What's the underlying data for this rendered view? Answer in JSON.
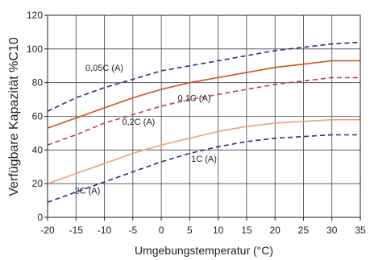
{
  "chart_data": {
    "type": "line",
    "title": "",
    "xlabel": "Umgebungstemperatur (°C)",
    "ylabel": "Verfügbare Kapazität %C10",
    "xlim": [
      -20,
      35
    ],
    "ylim": [
      0,
      120
    ],
    "x_ticks": [
      -20,
      -15,
      -10,
      -5,
      0,
      5,
      10,
      15,
      20,
      25,
      30,
      35
    ],
    "y_ticks": [
      0,
      20,
      40,
      60,
      80,
      100,
      120
    ],
    "grid": true,
    "series": [
      {
        "name": "0,05C (A)",
        "color": "#2a2f7a",
        "dash": true,
        "x": [
          -20,
          -15,
          -10,
          -5,
          0,
          5,
          10,
          15,
          20,
          25,
          30,
          35
        ],
        "y": [
          63,
          71,
          77,
          82,
          87,
          90,
          93,
          96,
          99,
          101,
          103,
          104
        ]
      },
      {
        "name": "",
        "color": "#d0501c",
        "dash": false,
        "x": [
          -20,
          -15,
          -10,
          -5,
          0,
          5,
          10,
          15,
          20,
          25,
          30,
          35
        ],
        "y": [
          53,
          59,
          65,
          71,
          76,
          80,
          83,
          86,
          89,
          91,
          93,
          93
        ]
      },
      {
        "name": "0,1C (A)",
        "color": "#b03a8a",
        "dash": true,
        "x": [
          -20,
          -15,
          -10,
          -5,
          0,
          5,
          10,
          15,
          20,
          25,
          30,
          35
        ],
        "y": [
          43,
          49,
          56,
          61,
          66,
          70,
          73,
          76,
          79,
          81,
          83,
          83
        ]
      },
      {
        "name": "0,2C (A)",
        "color": "#f0a07a",
        "dash": false,
        "x": [
          -20,
          -15,
          -10,
          -5,
          0,
          5,
          10,
          15,
          20,
          25,
          30,
          35
        ],
        "y": [
          20,
          26,
          32,
          38,
          43,
          47,
          51,
          54,
          56,
          57,
          58,
          58
        ]
      },
      {
        "name": "1C (A)",
        "color": "#2a2f7a",
        "dash": true,
        "x": [
          -20,
          -15,
          -10,
          -5,
          0,
          5,
          10,
          15,
          20,
          25,
          30,
          35
        ],
        "y": [
          9,
          15,
          21,
          27,
          33,
          38,
          42,
          45,
          47,
          48,
          49,
          49
        ]
      }
    ],
    "annotations": [
      {
        "text": "0,05C (A)",
        "x": -10,
        "y": 87
      },
      {
        "text": "0,1C (A)",
        "x": 5.8,
        "y": 69
      },
      {
        "text": "0,2C (A)",
        "x": -4,
        "y": 55
      },
      {
        "text": "1C (A)",
        "x": 7.5,
        "y": 33
      },
      {
        "text": "2C (A)",
        "x": -13,
        "y": 14
      }
    ]
  }
}
